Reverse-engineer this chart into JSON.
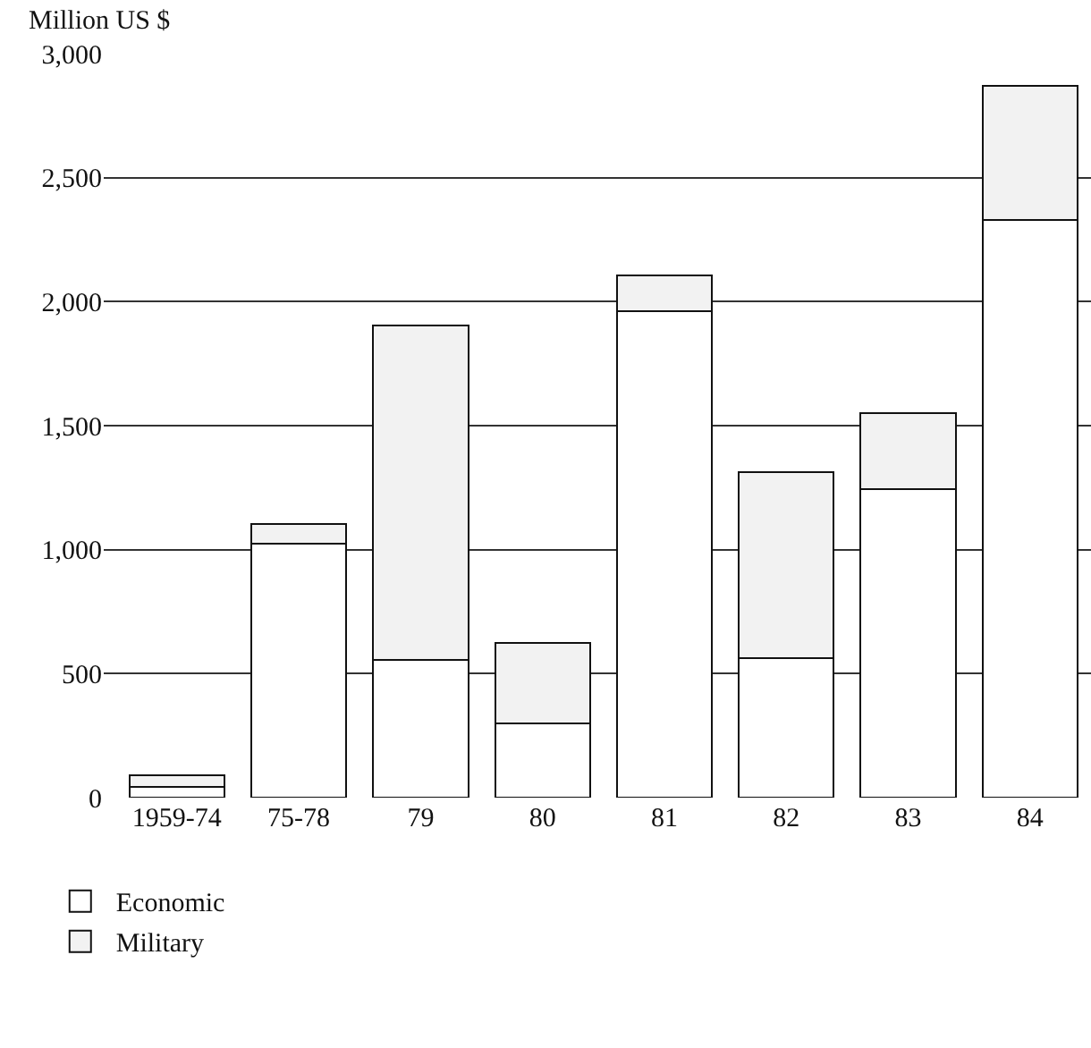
{
  "chart_data": {
    "type": "bar",
    "stacked": true,
    "ylabel": "Million US $",
    "categories": [
      "1959-74",
      "75-78",
      "79",
      "80",
      "81",
      "82",
      "83",
      "84"
    ],
    "series": [
      {
        "name": "Economic",
        "color": "#ffffff",
        "values": [
          45,
          1023,
          557,
          298,
          1960,
          564,
          1243,
          2330
        ]
      },
      {
        "name": "Military",
        "color": "#f2f2f2",
        "values": [
          46,
          80,
          1348,
          327,
          145,
          750,
          307,
          541
        ]
      }
    ],
    "ylim": [
      0,
      3000
    ],
    "yticks": [
      {
        "value": 0,
        "label": "0"
      },
      {
        "value": 500,
        "label": "500"
      },
      {
        "value": 1000,
        "label": "1,000"
      },
      {
        "value": 1500,
        "label": "1,500"
      },
      {
        "value": 2000,
        "label": "2,000"
      },
      {
        "value": 2500,
        "label": "2,500"
      },
      {
        "value": 3000,
        "label": "3,000"
      }
    ],
    "grid": "y",
    "legend": "bottom left"
  }
}
